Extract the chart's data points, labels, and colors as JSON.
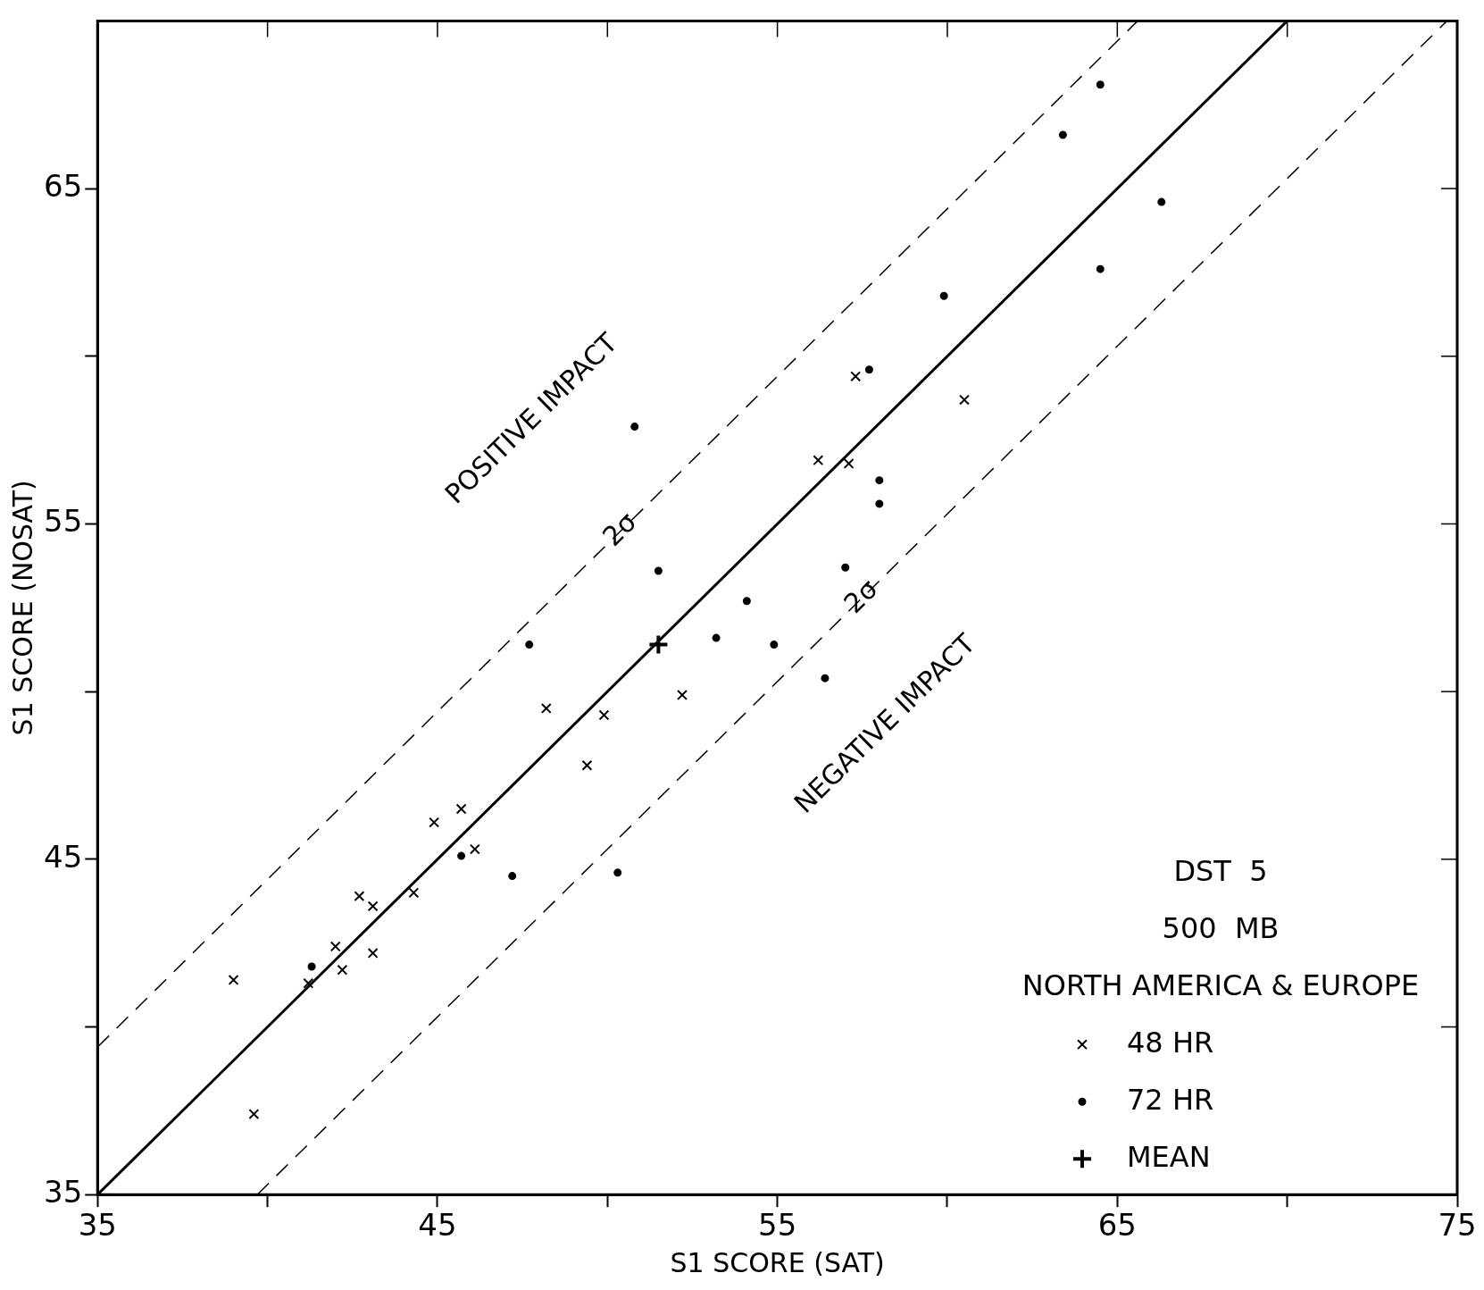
{
  "chart_data": {
    "type": "scatter",
    "xlabel": "S1 SCORE (SAT)",
    "ylabel": "S1 SCORE (NOSAT)",
    "xlim": [
      35,
      75
    ],
    "ylim": [
      35,
      70
    ],
    "xticks": [
      35,
      {
        "value": 40,
        "label": null
      },
      45,
      {
        "value": 50,
        "label": null
      },
      55,
      {
        "value": 60,
        "label": null
      },
      65,
      {
        "value": 70,
        "label": null
      },
      75
    ],
    "yticks": [
      35,
      {
        "value": 40,
        "label": null
      },
      45,
      {
        "value": 50,
        "label": null
      },
      55,
      {
        "value": 60,
        "label": null
      },
      65
    ],
    "grid": false,
    "legend": "bottom right",
    "series": [
      {
        "name": "48 HR",
        "type": "scatter",
        "marker": "cross",
        "color": "#000000",
        "x": [
          39.0,
          39.6,
          41.2,
          42.0,
          42.2,
          42.7,
          43.1,
          43.1,
          44.3,
          44.9,
          45.7,
          46.1,
          48.2,
          49.4,
          49.9,
          52.2,
          56.2,
          57.1,
          57.3,
          60.5
        ],
        "values": [
          41.4,
          37.4,
          41.3,
          42.4,
          41.7,
          43.9,
          43.6,
          42.2,
          44.0,
          46.1,
          46.5,
          45.3,
          49.5,
          47.8,
          49.3,
          49.9,
          56.9,
          56.8,
          59.4,
          58.7
        ]
      },
      {
        "name": "72 HR",
        "type": "scatter",
        "marker": "circle",
        "color": "#000000",
        "x": [
          41.3,
          45.7,
          47.2,
          47.7,
          50.3,
          50.8,
          51.5,
          53.2,
          54.1,
          54.9,
          56.4,
          57.0,
          57.7,
          58.0,
          58.0,
          59.9,
          63.4,
          64.5,
          64.5,
          66.3
        ],
        "values": [
          41.8,
          45.1,
          44.5,
          51.4,
          44.6,
          57.9,
          53.6,
          51.6,
          52.7,
          51.4,
          50.4,
          53.7,
          59.6,
          55.6,
          56.3,
          61.8,
          66.6,
          68.1,
          62.6,
          64.6
        ]
      },
      {
        "name": "MEAN",
        "type": "scatter",
        "marker": "cross",
        "color": "#000000",
        "x": [
          51.5
        ],
        "values": [
          51.4
        ]
      },
      {
        "type": "line",
        "line_style": "solid",
        "color": "#000000",
        "x": [
          35,
          70
        ],
        "values": [
          35,
          70
        ]
      },
      {
        "type": "line",
        "line_style": "dashed",
        "color": "#000000",
        "x": [
          35,
          65.6
        ],
        "values": [
          39.4,
          70
        ]
      },
      {
        "type": "line",
        "line_style": "dashed",
        "color": "#000000",
        "x": [
          39.7,
          74.7
        ],
        "values": [
          35,
          70
        ]
      }
    ],
    "annotations": [
      "POSITIVE IMPACT",
      "NEGATIVE IMPACT",
      {
        "text": "2σ",
        "x": 50.4,
        "y": 54.8
      },
      {
        "text": "2σ",
        "x": 57.5,
        "y": 52.8
      },
      "DST  5",
      "500  MB",
      "NORTH AMERICA & EUROPE"
    ]
  }
}
